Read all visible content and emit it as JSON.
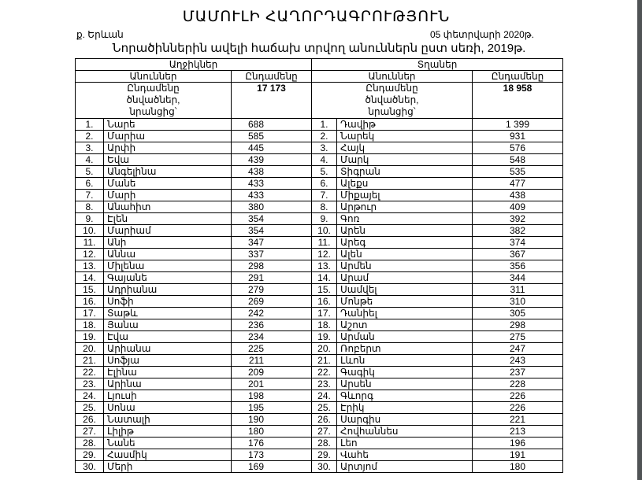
{
  "title": "ՄԱՄՈՒԼԻ ՀԱՂՈՐԴԱԳՐՈՒԹՅՈՒՆ",
  "city": "ք. Երևան",
  "date": "05 փետրվարի 2020թ.",
  "subtitle": "Նորածիններին ավելի հաճախ տրվող անուններն ըստ սեռի,  2019թ.",
  "table": {
    "girls_header": "Աղջիկներ",
    "boys_header": "Տղաներ",
    "col_names": "Անուններ",
    "col_total": "Ընդամենը",
    "total_label": "Ընդամենը  ծնվածներ, նրանցից՝",
    "girls_total": "17 173",
    "boys_total": "18 958",
    "rows": [
      {
        "n": "1.",
        "g": "Նարե",
        "gc": "688",
        "b": "Դավիթ",
        "bc": "1 399"
      },
      {
        "n": "2.",
        "g": "Մարիա",
        "gc": "585",
        "b": "Նարեկ",
        "bc": "931"
      },
      {
        "n": "3.",
        "g": "Արփի",
        "gc": "445",
        "b": "Հայկ",
        "bc": "576"
      },
      {
        "n": "4.",
        "g": "Եվա",
        "gc": "439",
        "b": "Մարկ",
        "bc": "548"
      },
      {
        "n": "5.",
        "g": "Անգելինա",
        "gc": "438",
        "b": "Տիգրան",
        "bc": "535"
      },
      {
        "n": "6.",
        "g": "Մանե",
        "gc": "433",
        "b": "Ալեքս",
        "bc": "477"
      },
      {
        "n": "7.",
        "g": "Մարի",
        "gc": "433",
        "b": "Միքայել",
        "bc": "438"
      },
      {
        "n": "8.",
        "g": "Անահիտ",
        "gc": "380",
        "b": "Արթուր",
        "bc": "409"
      },
      {
        "n": "9.",
        "g": "Էլեն",
        "gc": "354",
        "b": "Գոռ",
        "bc": "392"
      },
      {
        "n": "10.",
        "g": "Մարիամ",
        "gc": "354",
        "b": "Արեն",
        "bc": "382"
      },
      {
        "n": "11.",
        "g": "Անի",
        "gc": "347",
        "b": "Արեգ",
        "bc": "374"
      },
      {
        "n": "12.",
        "g": "Աննա",
        "gc": "337",
        "b": "Ալեն",
        "bc": "367"
      },
      {
        "n": "13.",
        "g": "Միլենա",
        "gc": "298",
        "b": "Արմեն",
        "bc": "356"
      },
      {
        "n": "14.",
        "g": "Գայանե",
        "gc": "291",
        "b": "Արամ",
        "bc": "344"
      },
      {
        "n": "15.",
        "g": "Ադրիանա",
        "gc": "279",
        "b": "Սամվել",
        "bc": "311"
      },
      {
        "n": "16.",
        "g": "Սոֆի",
        "gc": "269",
        "b": "Մոնթե",
        "bc": "310"
      },
      {
        "n": "17.",
        "g": "Տաթև",
        "gc": "242",
        "b": "Դանիել",
        "bc": "305"
      },
      {
        "n": "18.",
        "g": "Յանա",
        "gc": "236",
        "b": "Աշոտ",
        "bc": "298"
      },
      {
        "n": "19.",
        "g": "Էվա",
        "gc": "234",
        "b": "Արման",
        "bc": "275"
      },
      {
        "n": "20.",
        "g": "Արիանա",
        "gc": "225",
        "b": "Ռոբերտ",
        "bc": "247"
      },
      {
        "n": "21.",
        "g": "Սոֆյա",
        "gc": "211",
        "b": "Լևոն",
        "bc": "243"
      },
      {
        "n": "22.",
        "g": "Էլինա",
        "gc": "209",
        "b": "Գագիկ",
        "bc": "237"
      },
      {
        "n": "23.",
        "g": "Արինա",
        "gc": "201",
        "b": "Արսեն",
        "bc": "228"
      },
      {
        "n": "24.",
        "g": "Լյուսի",
        "gc": "198",
        "b": "Գևորգ",
        "bc": "226"
      },
      {
        "n": "25.",
        "g": "Սոնա",
        "gc": "195",
        "b": "Էրիկ",
        "bc": "226"
      },
      {
        "n": "26.",
        "g": "Նատալի",
        "gc": "190",
        "b": "Սարգիս",
        "bc": "221"
      },
      {
        "n": "27.",
        "g": "Լիլիթ",
        "gc": "180",
        "b": "Հովհաննես",
        "bc": "213"
      },
      {
        "n": "28.",
        "g": "Նանե",
        "gc": "176",
        "b": "Լեո",
        "bc": "196"
      },
      {
        "n": "29.",
        "g": "Հասմիկ",
        "gc": "173",
        "b": "Վահե",
        "bc": "191"
      },
      {
        "n": "30.",
        "g": "Մերի",
        "gc": "169",
        "b": "Արտյոմ",
        "bc": "180"
      }
    ]
  }
}
